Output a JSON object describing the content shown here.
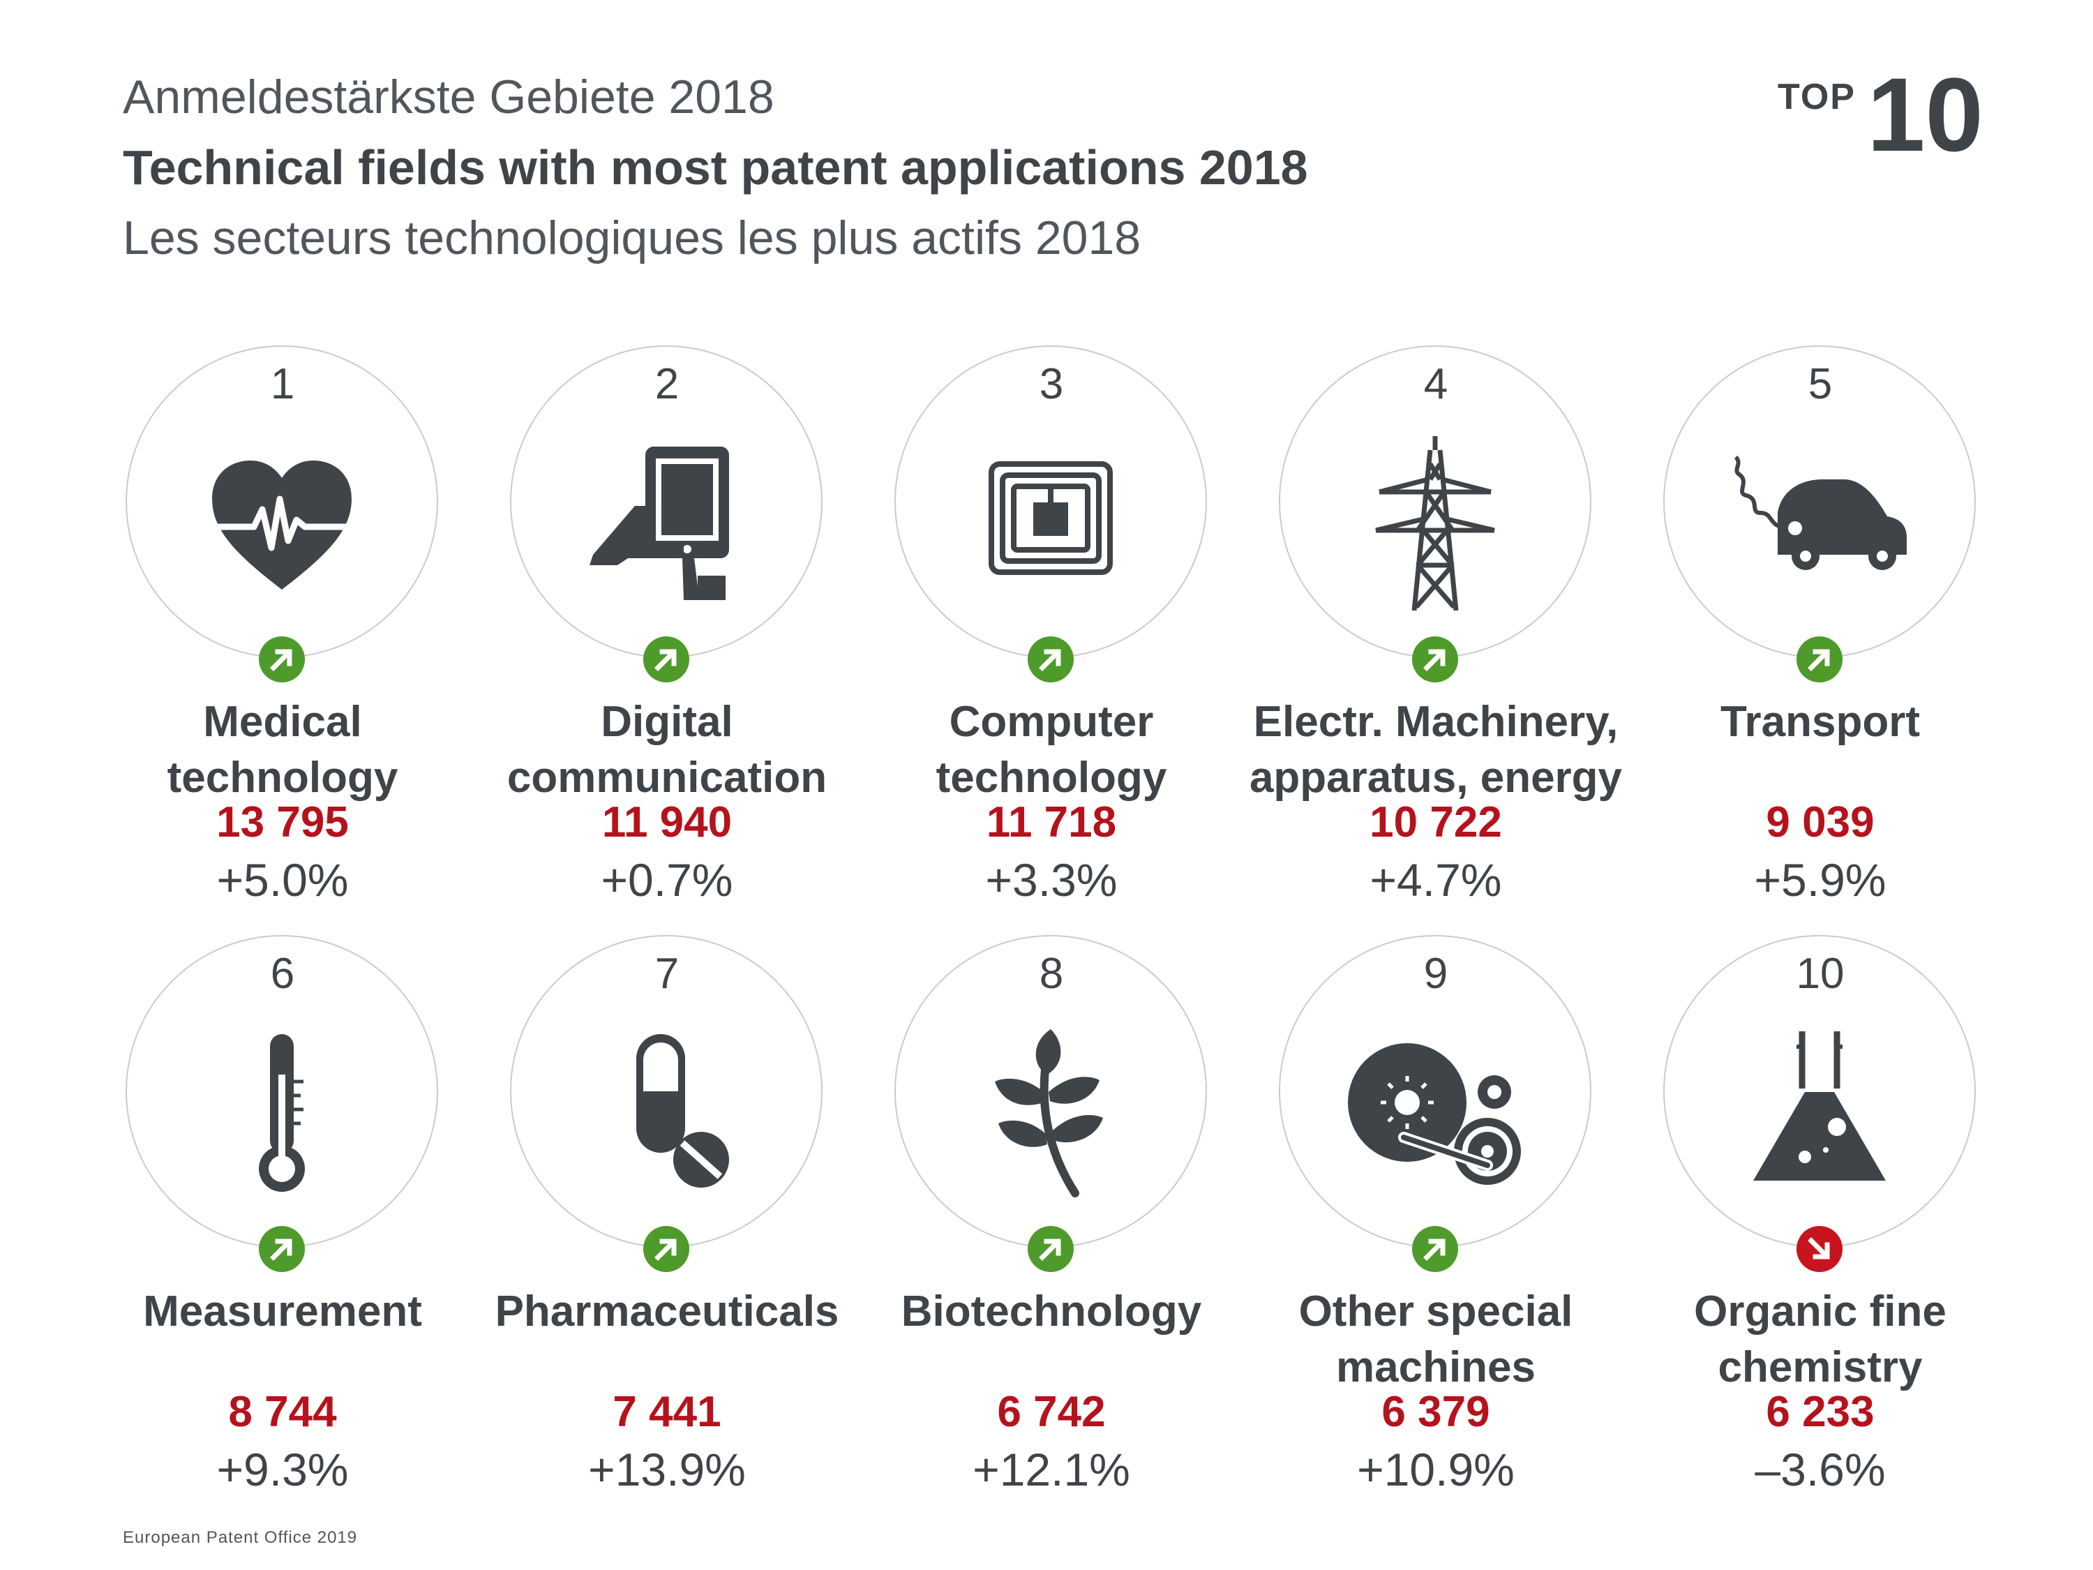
{
  "header": {
    "title_de": "Anmeldestärkste Gebiete 2018",
    "title_en": "Technical fields with most patent applications 2018",
    "title_fr": "Les secteurs technologiques les plus actifs 2018",
    "badge_top": "TOP",
    "badge_num": "10"
  },
  "colors": {
    "icon": "#3f4449",
    "value_red": "#b5121b",
    "trend_up": "#4e9a2b",
    "trend_down": "#c8141e",
    "ring": "#c9cbcd"
  },
  "items": [
    {
      "rank": "1",
      "label": "Medical\ntechnology",
      "value": "13 795",
      "change": "+5.0%",
      "trend": "up",
      "icon": "heart-pulse-icon"
    },
    {
      "rank": "2",
      "label": "Digital\ncommunication",
      "value": "11 940",
      "change": "+0.7%",
      "trend": "up",
      "icon": "tablet-hand-icon"
    },
    {
      "rank": "3",
      "label": "Computer\ntechnology",
      "value": "11 718",
      "change": "+3.3%",
      "trend": "up",
      "icon": "chip-icon"
    },
    {
      "rank": "4",
      "label": "Electr. Machinery,\napparatus, energy",
      "value": "10 722",
      "change": "+4.7%",
      "trend": "up",
      "icon": "power-pylon-icon"
    },
    {
      "rank": "5",
      "label": "Transport",
      "value": "9 039",
      "change": "+5.9%",
      "trend": "up",
      "icon": "electric-car-icon"
    },
    {
      "rank": "6",
      "label": "Measurement",
      "value": "8 744",
      "change": "+9.3%",
      "trend": "up",
      "icon": "thermometer-icon"
    },
    {
      "rank": "7",
      "label": "Pharmaceuticals",
      "value": "7 441",
      "change": "+13.9%",
      "trend": "up",
      "icon": "pills-icon"
    },
    {
      "rank": "8",
      "label": "Biotechnology",
      "value": "6 742",
      "change": "+12.1%",
      "trend": "up",
      "icon": "plant-icon"
    },
    {
      "rank": "9",
      "label": "Other special\nmachines",
      "value": "6 379",
      "change": "+10.9%",
      "trend": "up",
      "icon": "machine-gears-icon"
    },
    {
      "rank": "10",
      "label": "Organic fine\nchemistry",
      "value": "6 233",
      "change": "–3.6%",
      "trend": "down",
      "icon": "flask-icon"
    }
  ],
  "footer": "European Patent Office 2019"
}
